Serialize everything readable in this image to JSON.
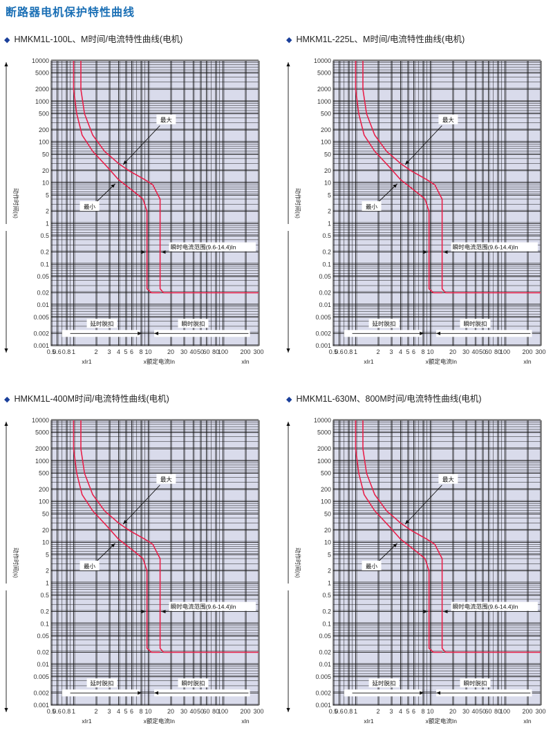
{
  "page_title": "断路器电机保护特性曲线",
  "colors": {
    "title": "#1a6fb5",
    "plot_bg": "#d9dbeb",
    "grid": "#1a1a1a",
    "curve": "#e8204a"
  },
  "chart_data": [
    {
      "type": "line",
      "title": "HMKM1L-100L、M时间/电流特性曲线(电机)",
      "ylabel": "动作时间(s)",
      "xlabel": "x额定电流In",
      "xlabel_left": "xIr1",
      "xlabel_right": "xIn",
      "x_scale": "log",
      "y_scale": "log",
      "xlim": [
        0.5,
        300
      ],
      "ylim": [
        0.001,
        10000
      ],
      "x_ticks": [
        "0.5",
        "0.6",
        "0.8",
        "1",
        "2",
        "3",
        "4",
        "5",
        "6",
        "8",
        "10",
        "20",
        "30",
        "40",
        "50",
        "60",
        "80",
        "100",
        "200",
        "300"
      ],
      "y_ticks": [
        "0.001",
        "0.002",
        "0.005",
        "0.01",
        "0.02",
        "0.05",
        "0.1",
        "0.2",
        "0.5",
        "1",
        "2",
        "5",
        "10",
        "20",
        "50",
        "100",
        "200",
        "500",
        "1000",
        "2000",
        "5000",
        "10000"
      ],
      "series": [
        {
          "name": "最大",
          "points": [
            [
              1.25,
              10000
            ],
            [
              1.25,
              2000
            ],
            [
              1.4,
              500
            ],
            [
              1.8,
              150
            ],
            [
              2.6,
              60
            ],
            [
              4,
              30
            ],
            [
              5.5,
              20
            ],
            [
              9,
              12
            ],
            [
              11.5,
              9
            ],
            [
              14.4,
              4
            ],
            [
              14.4,
              0.025
            ],
            [
              16,
              0.02
            ],
            [
              300,
              0.02
            ]
          ]
        },
        {
          "name": "最小",
          "points": [
            [
              1,
              10000
            ],
            [
              1,
              2000
            ],
            [
              1.1,
              500
            ],
            [
              1.3,
              150
            ],
            [
              1.8,
              60
            ],
            [
              2.8,
              25
            ],
            [
              4,
              12
            ],
            [
              6.5,
              6
            ],
            [
              8.5,
              4
            ],
            [
              9.6,
              2
            ],
            [
              9.6,
              0.025
            ],
            [
              11,
              0.02
            ],
            [
              14.4,
              0.02
            ]
          ]
        }
      ],
      "annotations": {
        "max": "最大",
        "min": "最小",
        "inst_range": "瞬时电流范围(9.6-14.4)In",
        "delay_release": "延时脱扣",
        "inst_release": "瞬时脱扣"
      }
    },
    {
      "type": "line",
      "title": "HMKM1L-225L、M时间/电流特性曲线(电机)",
      "ylabel": "动作时间(s)",
      "xlabel": "x额定电流In",
      "xlabel_left": "xIr1",
      "xlabel_right": "xIn",
      "x_scale": "log",
      "y_scale": "log",
      "xlim": [
        0.5,
        300
      ],
      "ylim": [
        0.001,
        10000
      ],
      "x_ticks": [
        "0.5",
        "0.6",
        "0.8",
        "1",
        "2",
        "3",
        "4",
        "5",
        "6",
        "8",
        "10",
        "20",
        "30",
        "40",
        "50",
        "60",
        "80",
        "100",
        "200",
        "300"
      ],
      "y_ticks": [
        "0.001",
        "0.002",
        "0.005",
        "0.01",
        "0.02",
        "0.05",
        "0.1",
        "0.2",
        "0.5",
        "1",
        "2",
        "5",
        "10",
        "20",
        "50",
        "100",
        "200",
        "500",
        "1000",
        "2000",
        "5000",
        "10000"
      ],
      "series": [
        {
          "name": "最大",
          "points": [
            [
              1.25,
              10000
            ],
            [
              1.25,
              2000
            ],
            [
              1.4,
              500
            ],
            [
              1.8,
              150
            ],
            [
              2.6,
              60
            ],
            [
              4,
              30
            ],
            [
              5.5,
              20
            ],
            [
              9,
              12
            ],
            [
              11.5,
              9
            ],
            [
              14.4,
              4
            ],
            [
              14.4,
              0.025
            ],
            [
              16,
              0.02
            ],
            [
              300,
              0.02
            ]
          ]
        },
        {
          "name": "最小",
          "points": [
            [
              1,
              10000
            ],
            [
              1,
              2000
            ],
            [
              1.1,
              500
            ],
            [
              1.3,
              150
            ],
            [
              1.8,
              60
            ],
            [
              2.8,
              25
            ],
            [
              4,
              12
            ],
            [
              6.5,
              6
            ],
            [
              8.5,
              4
            ],
            [
              9.6,
              2
            ],
            [
              9.6,
              0.025
            ],
            [
              11,
              0.02
            ],
            [
              14.4,
              0.02
            ]
          ]
        }
      ],
      "annotations": {
        "max": "最大",
        "min": "最小",
        "inst_range": "瞬时电流范围(9.6-14.4)In",
        "delay_release": "延时脱扣",
        "inst_release": "瞬时脱扣"
      }
    },
    {
      "type": "line",
      "title": "HMKM1L-400M时间/电流特性曲线(电机)",
      "ylabel": "动作时间(s)",
      "xlabel": "x额定电流In",
      "xlabel_left": "xIr1",
      "xlabel_right": "xIn",
      "x_scale": "log",
      "y_scale": "log",
      "xlim": [
        0.5,
        300
      ],
      "ylim": [
        0.001,
        10000
      ],
      "x_ticks": [
        "0.5",
        "0.6",
        "0.8",
        "1",
        "2",
        "3",
        "4",
        "5",
        "6",
        "8",
        "10",
        "20",
        "30",
        "40",
        "50",
        "60",
        "80",
        "100",
        "200",
        "300"
      ],
      "y_ticks": [
        "0.001",
        "0.002",
        "0.005",
        "0.01",
        "0.02",
        "0.05",
        "0.1",
        "0.2",
        "0.5",
        "1",
        "2",
        "5",
        "10",
        "20",
        "50",
        "100",
        "200",
        "500",
        "1000",
        "2000",
        "5000",
        "10000"
      ],
      "series": [
        {
          "name": "最大",
          "points": [
            [
              1.25,
              10000
            ],
            [
              1.25,
              2000
            ],
            [
              1.4,
              500
            ],
            [
              1.8,
              150
            ],
            [
              2.6,
              60
            ],
            [
              4,
              30
            ],
            [
              5.5,
              20
            ],
            [
              9,
              12
            ],
            [
              11.5,
              9
            ],
            [
              14.4,
              4
            ],
            [
              14.4,
              0.025
            ],
            [
              16,
              0.02
            ],
            [
              300,
              0.02
            ]
          ]
        },
        {
          "name": "最小",
          "points": [
            [
              1,
              10000
            ],
            [
              1,
              2000
            ],
            [
              1.1,
              500
            ],
            [
              1.3,
              150
            ],
            [
              1.8,
              60
            ],
            [
              2.8,
              25
            ],
            [
              4,
              12
            ],
            [
              6.5,
              6
            ],
            [
              8.5,
              4
            ],
            [
              9.6,
              2
            ],
            [
              9.6,
              0.025
            ],
            [
              11,
              0.02
            ],
            [
              14.4,
              0.02
            ]
          ]
        }
      ],
      "annotations": {
        "max": "最大",
        "min": "最小",
        "inst_range": "瞬时电流范围(9.6-14.4)In",
        "delay_release": "延时脱扣",
        "inst_release": "瞬时脱扣"
      }
    },
    {
      "type": "line",
      "title": "HMKM1L-630M、800M时间/电流特性曲线(电机)",
      "ylabel": "动作时间(s)",
      "xlabel": "x额定电流In",
      "xlabel_left": "xIr1",
      "xlabel_right": "xIn",
      "x_scale": "log",
      "y_scale": "log",
      "xlim": [
        0.5,
        300
      ],
      "ylim": [
        0.001,
        10000
      ],
      "x_ticks": [
        "0.5",
        "0.6",
        "0.8",
        "1",
        "2",
        "3",
        "4",
        "5",
        "6",
        "8",
        "10",
        "20",
        "30",
        "40",
        "50",
        "60",
        "80",
        "100",
        "200",
        "300"
      ],
      "y_ticks": [
        "0.001",
        "0.002",
        "0.005",
        "0.01",
        "0.02",
        "0.05",
        "0.1",
        "0.2",
        "0.5",
        "1",
        "2",
        "5",
        "10",
        "20",
        "50",
        "100",
        "200",
        "500",
        "1000",
        "2000",
        "5000",
        "10000"
      ],
      "series": [
        {
          "name": "最大",
          "points": [
            [
              1.25,
              10000
            ],
            [
              1.25,
              2000
            ],
            [
              1.4,
              500
            ],
            [
              1.8,
              150
            ],
            [
              2.6,
              60
            ],
            [
              4,
              30
            ],
            [
              5.5,
              20
            ],
            [
              9,
              12
            ],
            [
              11.5,
              9
            ],
            [
              14.4,
              4
            ],
            [
              14.4,
              0.025
            ],
            [
              16,
              0.02
            ],
            [
              300,
              0.02
            ]
          ]
        },
        {
          "name": "最小",
          "points": [
            [
              1,
              10000
            ],
            [
              1,
              2000
            ],
            [
              1.1,
              500
            ],
            [
              1.3,
              150
            ],
            [
              1.8,
              60
            ],
            [
              2.8,
              25
            ],
            [
              4,
              12
            ],
            [
              6.5,
              6
            ],
            [
              8.5,
              4
            ],
            [
              9.6,
              2
            ],
            [
              9.6,
              0.025
            ],
            [
              11,
              0.02
            ],
            [
              14.4,
              0.02
            ]
          ]
        }
      ],
      "annotations": {
        "max": "最大",
        "min": "最小",
        "inst_range": "瞬时电流范围(9.6-14.4)In",
        "delay_release": "延时脱扣",
        "inst_release": "瞬时脱扣"
      }
    }
  ]
}
